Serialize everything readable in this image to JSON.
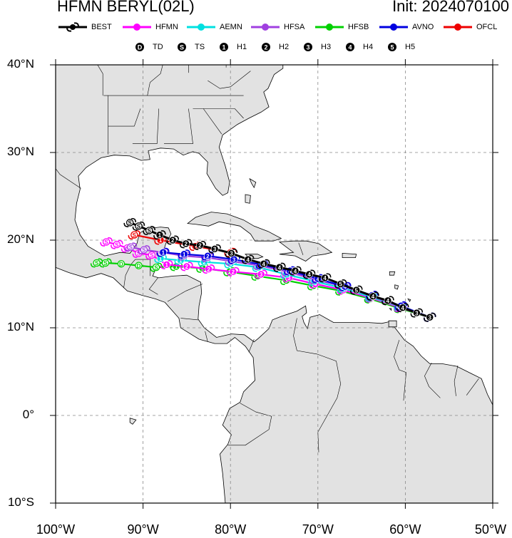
{
  "header": {
    "title": "HFMN BERYL(02L)",
    "init": "Init: 2024070100"
  },
  "legend": {
    "models": [
      {
        "label": "BEST",
        "color": "#000000"
      },
      {
        "label": "HFMN",
        "color": "#ff00ff"
      },
      {
        "label": "AEMN",
        "color": "#00e0e0"
      },
      {
        "label": "HFSA",
        "color": "#a040e0"
      },
      {
        "label": "HFSB",
        "color": "#00d000"
      },
      {
        "label": "AVNO",
        "color": "#0000e0"
      },
      {
        "label": "OFCL",
        "color": "#ee0000"
      }
    ],
    "intensity": [
      {
        "symbol": "D",
        "label": "TD"
      },
      {
        "symbol": "S",
        "label": "TS"
      },
      {
        "symbol": "1",
        "label": "H1"
      },
      {
        "symbol": "2",
        "label": "H2"
      },
      {
        "symbol": "3",
        "label": "H3"
      },
      {
        "symbol": "4",
        "label": "H4"
      },
      {
        "symbol": "5",
        "label": "H5"
      }
    ]
  },
  "axes": {
    "lat_labels": [
      "40°N",
      "30°N",
      "20°N",
      "10°N",
      "0°",
      "10°S"
    ],
    "lon_labels": [
      "100°W",
      "90°W",
      "80°W",
      "70°W",
      "60°W",
      "50°W"
    ]
  },
  "tracks": [
    {
      "name": "BEST",
      "color": "#000000",
      "points": [
        [
          -57.2,
          11.2,
          "3"
        ],
        [
          -58.7,
          11.7,
          "3"
        ],
        [
          -60.3,
          12.3,
          "4"
        ],
        [
          -62,
          13.1,
          "4"
        ],
        [
          -63.7,
          13.6,
          "4"
        ],
        [
          -65.6,
          14.3,
          "5"
        ],
        [
          -67.4,
          15,
          "5"
        ],
        [
          -69.2,
          15.7,
          "4"
        ],
        [
          -71,
          16.1,
          "4"
        ],
        [
          -72.6,
          16.5,
          "4"
        ],
        [
          -74.4,
          16.9,
          "4"
        ],
        [
          -76.2,
          17.3,
          "4"
        ],
        [
          -78,
          17.8,
          "4"
        ],
        [
          -79.9,
          18.5,
          "3"
        ],
        [
          -81.8,
          19,
          "3"
        ],
        [
          -83.5,
          19.4,
          "2"
        ],
        [
          -85.1,
          19.6,
          "2"
        ],
        [
          -86.6,
          20,
          "2"
        ],
        [
          -88.1,
          20.6,
          "1"
        ],
        [
          -89.3,
          21.1,
          "S"
        ],
        [
          -90.5,
          21.6,
          "S"
        ],
        [
          -91.5,
          22,
          "S"
        ]
      ]
    },
    {
      "name": "HFMN",
      "color": "#ff00ff",
      "points": [
        [
          -57.2,
          11.2,
          "3"
        ],
        [
          -60.6,
          12.3,
          "4"
        ],
        [
          -63.9,
          13.4,
          "4"
        ],
        [
          -67.1,
          14.3,
          "4"
        ],
        [
          -70.3,
          15,
          "4"
        ],
        [
          -73.3,
          15.7,
          "3"
        ],
        [
          -76.5,
          16.1,
          "3"
        ],
        [
          -79.7,
          16.4,
          "2"
        ],
        [
          -82.5,
          16.7,
          "2"
        ],
        [
          -85,
          17,
          "2"
        ],
        [
          -87.3,
          17.2,
          "1"
        ],
        [
          -89,
          18.3,
          "S"
        ],
        [
          -90.5,
          18.5,
          "S"
        ],
        [
          -91.8,
          19.1,
          "S"
        ],
        [
          -93,
          19.5,
          "S"
        ],
        [
          -94.2,
          19.8,
          "S"
        ]
      ]
    },
    {
      "name": "AEMN",
      "color": "#00e0e0",
      "points": [
        [
          -57.2,
          11.2,
          "3"
        ],
        [
          -60.6,
          12.4,
          "4"
        ],
        [
          -63.9,
          13.5,
          "4"
        ],
        [
          -67.1,
          14.5,
          "4"
        ],
        [
          -70.4,
          15.3,
          "4"
        ],
        [
          -73.6,
          16.1,
          "4"
        ],
        [
          -76.8,
          16.9,
          "3"
        ],
        [
          -80,
          17.3,
          "3"
        ],
        [
          -83,
          17.5,
          "2"
        ],
        [
          -85.7,
          17.7,
          "1"
        ],
        [
          -88,
          17.9,
          "1"
        ]
      ]
    },
    {
      "name": "HFSA",
      "color": "#a040e0",
      "points": [
        [
          -57.2,
          11.2,
          "3"
        ],
        [
          -60.5,
          12.4,
          "4"
        ],
        [
          -63.8,
          13.6,
          "4"
        ],
        [
          -67,
          14.7,
          "4"
        ],
        [
          -70.3,
          15.5,
          "4"
        ],
        [
          -73.5,
          16.4,
          "4"
        ],
        [
          -76.7,
          17.1,
          "3"
        ],
        [
          -79.9,
          17.6,
          "3"
        ],
        [
          -82.6,
          18,
          "2"
        ],
        [
          -85.3,
          18.2,
          "1"
        ],
        [
          -87.8,
          18.6,
          "1"
        ],
        [
          -89.9,
          18.9,
          "S"
        ],
        [
          -91.4,
          19.2,
          "S"
        ]
      ]
    },
    {
      "name": "HFSB",
      "color": "#00d000",
      "points": [
        [
          -57.2,
          11.2,
          "3"
        ],
        [
          -60.6,
          12.2,
          "4"
        ],
        [
          -64,
          13.3,
          "4"
        ],
        [
          -67.3,
          14.2,
          "4"
        ],
        [
          -70.5,
          14.8,
          "4"
        ],
        [
          -73.6,
          15.4,
          "3"
        ],
        [
          -76.9,
          15.9,
          "2"
        ],
        [
          -80.1,
          16.4,
          "2"
        ],
        [
          -83.2,
          16.8,
          "1"
        ],
        [
          -86.2,
          17,
          "1"
        ],
        [
          -88.5,
          16.9,
          "S"
        ],
        [
          -90.5,
          17.1,
          "D"
        ],
        [
          -92.5,
          17.3,
          "D"
        ],
        [
          -94.3,
          17.4,
          "S"
        ],
        [
          -95.3,
          17.4,
          "S"
        ]
      ]
    },
    {
      "name": "AVNO",
      "color": "#0000e0",
      "points": [
        [
          -57.2,
          11.2,
          "3"
        ],
        [
          -60.5,
          12.5,
          "3"
        ],
        [
          -63.8,
          13.7,
          "4"
        ],
        [
          -66.9,
          14.7,
          "4"
        ],
        [
          -70,
          15.6,
          "4"
        ],
        [
          -73.2,
          16.5,
          "4"
        ],
        [
          -76.4,
          17.2,
          "3"
        ],
        [
          -79.6,
          17.8,
          "3"
        ],
        [
          -82.6,
          18.2,
          "2"
        ],
        [
          -85.3,
          18.4,
          "1"
        ],
        [
          -87.7,
          18.6,
          "1"
        ]
      ]
    },
    {
      "name": "OFCL",
      "color": "#ee0000",
      "points": [
        [
          -80,
          18.6,
          "3"
        ],
        [
          -84,
          19.3,
          "2"
        ],
        [
          -88,
          20,
          "1"
        ],
        [
          -91,
          20.6,
          "S"
        ]
      ]
    }
  ]
}
